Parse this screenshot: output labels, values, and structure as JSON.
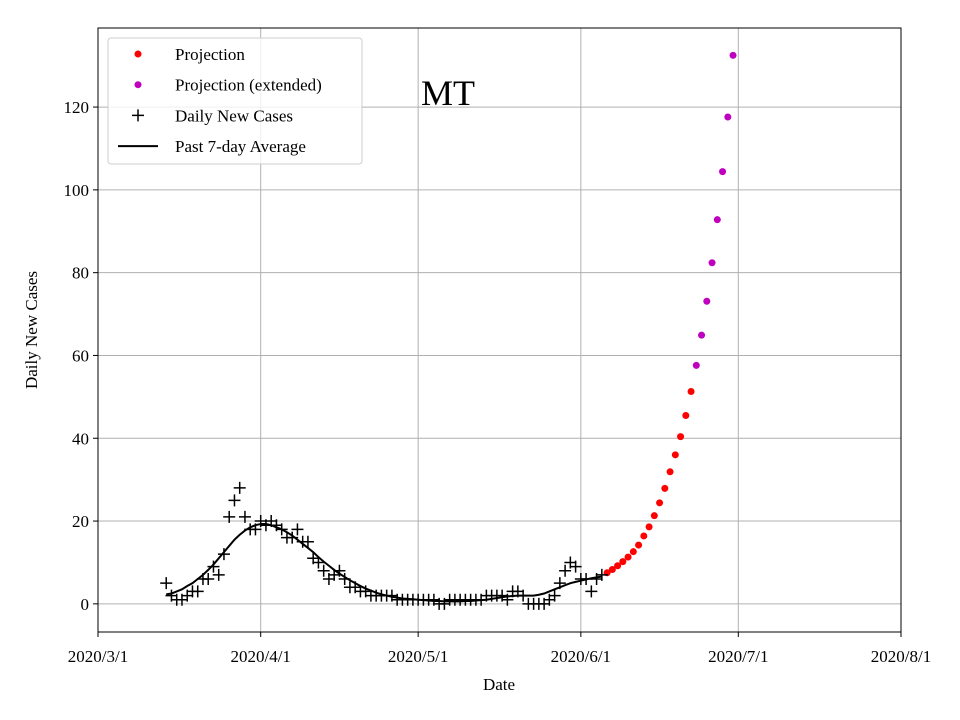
{
  "chart_data": {
    "type": "line",
    "title": "MT",
    "xlabel": "Date",
    "ylabel": "Daily New Cases",
    "xlim": [
      "2020/3/1",
      "2020/8/1"
    ],
    "xticks": [
      "2020/3/1",
      "2020/4/1",
      "2020/5/1",
      "2020/6/1",
      "2020/7/1",
      "2020/8/1"
    ],
    "ylim": [
      -6.8,
      139.1
    ],
    "yticks": [
      0,
      20,
      40,
      60,
      80,
      100,
      120
    ],
    "grid": true,
    "legend": "upper left",
    "x": [
      "2020/3/14",
      "2020/3/15",
      "2020/3/16",
      "2020/3/17",
      "2020/3/18",
      "2020/3/19",
      "2020/3/20",
      "2020/3/21",
      "2020/3/22",
      "2020/3/23",
      "2020/3/24",
      "2020/3/25",
      "2020/3/26",
      "2020/3/27",
      "2020/3/28",
      "2020/3/29",
      "2020/3/30",
      "2020/3/31",
      "2020/4/1",
      "2020/4/2",
      "2020/4/3",
      "2020/4/4",
      "2020/4/5",
      "2020/4/6",
      "2020/4/7",
      "2020/4/8",
      "2020/4/9",
      "2020/4/10",
      "2020/4/11",
      "2020/4/12",
      "2020/4/13",
      "2020/4/14",
      "2020/4/15",
      "2020/4/16",
      "2020/4/17",
      "2020/4/18",
      "2020/4/19",
      "2020/4/20",
      "2020/4/21",
      "2020/4/22",
      "2020/4/23",
      "2020/4/24",
      "2020/4/25",
      "2020/4/26",
      "2020/4/27",
      "2020/4/28",
      "2020/4/29",
      "2020/4/30",
      "2020/5/1",
      "2020/5/2",
      "2020/5/3",
      "2020/5/4",
      "2020/5/5",
      "2020/5/6",
      "2020/5/7",
      "2020/5/8",
      "2020/5/9",
      "2020/5/10",
      "2020/5/11",
      "2020/5/12",
      "2020/5/13",
      "2020/5/14",
      "2020/5/15",
      "2020/5/16",
      "2020/5/17",
      "2020/5/18",
      "2020/5/19",
      "2020/5/20",
      "2020/5/21",
      "2020/5/22",
      "2020/5/23",
      "2020/5/24",
      "2020/5/25",
      "2020/5/26",
      "2020/5/27",
      "2020/5/28",
      "2020/5/29",
      "2020/5/30",
      "2020/5/31",
      "2020/6/1",
      "2020/6/2",
      "2020/6/3",
      "2020/6/4",
      "2020/6/5"
    ],
    "series": [
      {
        "name": "Projection",
        "color": "#ff0000",
        "marker": "dot",
        "x": [
          "2020/6/6",
          "2020/6/7",
          "2020/6/8",
          "2020/6/9",
          "2020/6/10",
          "2020/6/11",
          "2020/6/12",
          "2020/6/13",
          "2020/6/14",
          "2020/6/15",
          "2020/6/16",
          "2020/6/17",
          "2020/6/18",
          "2020/6/19",
          "2020/6/20",
          "2020/6/21",
          "2020/6/22"
        ],
        "values": [
          7.5,
          8.3,
          9.2,
          10.2,
          11.3,
          12.6,
          14.2,
          16.4,
          18.6,
          21.3,
          24.4,
          27.9,
          31.9,
          36.0,
          40.4,
          45.5,
          51.3
        ]
      },
      {
        "name": "Projection (extended)",
        "color": "#bf00bf",
        "marker": "dot",
        "x": [
          "2020/6/23",
          "2020/6/24",
          "2020/6/25",
          "2020/6/26",
          "2020/6/27",
          "2020/6/28",
          "2020/6/29",
          "2020/6/30"
        ],
        "values": [
          57.6,
          64.9,
          73.1,
          82.4,
          92.8,
          104.4,
          117.6,
          132.5
        ]
      },
      {
        "name": "Daily New Cases",
        "color": "#000000",
        "marker": "plus",
        "values": [
          5,
          2,
          1,
          1,
          2,
          3,
          3,
          6,
          6,
          9,
          7,
          12,
          21,
          25,
          28,
          21,
          18,
          18,
          20,
          19,
          20,
          19,
          18,
          16,
          16,
          18,
          15,
          15,
          11,
          10,
          8,
          6,
          7,
          8,
          6,
          4,
          4,
          3,
          3,
          2,
          2,
          2,
          2,
          2,
          1,
          1,
          1,
          1,
          1,
          1,
          1,
          1,
          0,
          0,
          1,
          1,
          1,
          1,
          1,
          1,
          1,
          2,
          2,
          2,
          2,
          1,
          3,
          3,
          2,
          0,
          0,
          0,
          0,
          1,
          2,
          5,
          8,
          10,
          9,
          6,
          6,
          3,
          6,
          7
        ]
      },
      {
        "name": "Past 7-day Average",
        "color": "#000000",
        "marker": "line",
        "values": [
          2.3,
          2.5,
          3,
          3.5,
          4.3,
          5,
          6,
          7,
          8.2,
          9.5,
          11,
          12.5,
          14,
          15.5,
          16.7,
          17.7,
          18.5,
          19,
          19.3,
          19.3,
          19,
          18.5,
          18,
          17.3,
          16.5,
          15.5,
          14.5,
          13.5,
          12.5,
          11.3,
          10.2,
          9.2,
          8.2,
          7.3,
          6.5,
          5.7,
          5,
          4.3,
          3.7,
          3.2,
          2.7,
          2.3,
          2,
          1.7,
          1.5,
          1.3,
          1.2,
          1.1,
          1,
          0.9,
          0.8,
          0.7,
          0.7,
          0.6,
          0.6,
          0.6,
          0.6,
          0.7,
          0.7,
          0.8,
          0.9,
          1,
          1.2,
          1.4,
          1.6,
          1.8,
          1.9,
          2,
          2,
          2,
          2,
          2.2,
          2.5,
          3,
          3.5,
          4,
          4.5,
          5,
          5.3,
          5.6,
          5.9,
          6.2,
          6.4,
          6.6
        ]
      }
    ]
  }
}
